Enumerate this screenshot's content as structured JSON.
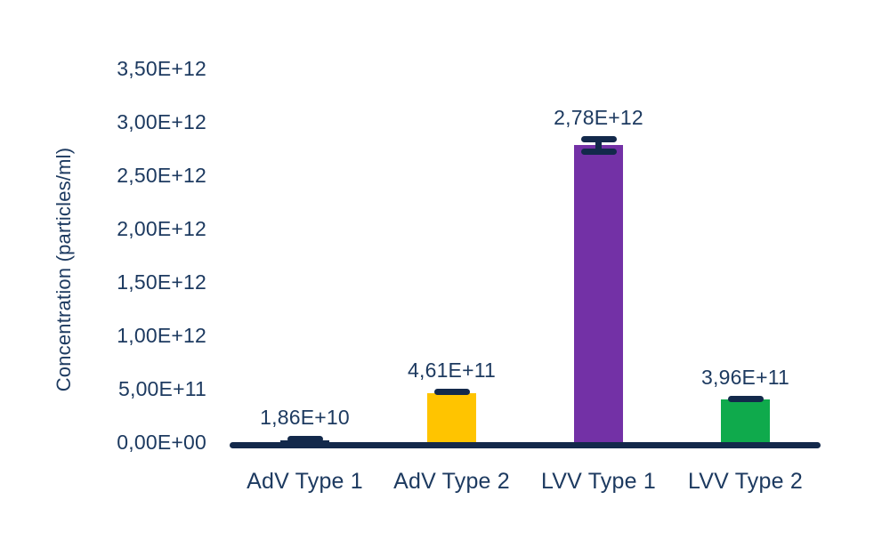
{
  "chart_data": {
    "type": "bar",
    "title": "",
    "xlabel": "",
    "ylabel": "Concentration (particles/ml)",
    "categories": [
      "AdV Type 1",
      "AdV Type 2",
      "LVV Type 1",
      "LVV Type 2"
    ],
    "values": [
      18600000000.0,
      461000000000.0,
      2780000000000.0,
      396000000000.0
    ],
    "value_labels": [
      "1,86E+10",
      "4,61E+11",
      "2,78E+12",
      "3,96E+11"
    ],
    "errors": [
      5000000000.0,
      20000000000.0,
      60000000000.0,
      15000000000.0
    ],
    "bar_colors": [
      "#13294B",
      "#FFC400",
      "#7331A6",
      "#0FAA4C"
    ],
    "ytick_labels": [
      "0,00E+00",
      "5,00E+11",
      "1,00E+12",
      "1,50E+12",
      "2,00E+12",
      "2,50E+12",
      "3,00E+12",
      "3,50E+12"
    ],
    "ytick_values": [
      0,
      500000000000.0,
      1000000000000.0,
      1500000000000.0,
      2000000000000.0,
      2500000000000.0,
      3000000000000.0,
      3500000000000.0
    ],
    "ylim": [
      0,
      3500000000000.0
    ],
    "grid": false,
    "legend": false,
    "background_color": "#FFFFFF",
    "axis_color": "#13294B",
    "error_bar_color": "#13294B",
    "text_color": "#1D3A60"
  }
}
